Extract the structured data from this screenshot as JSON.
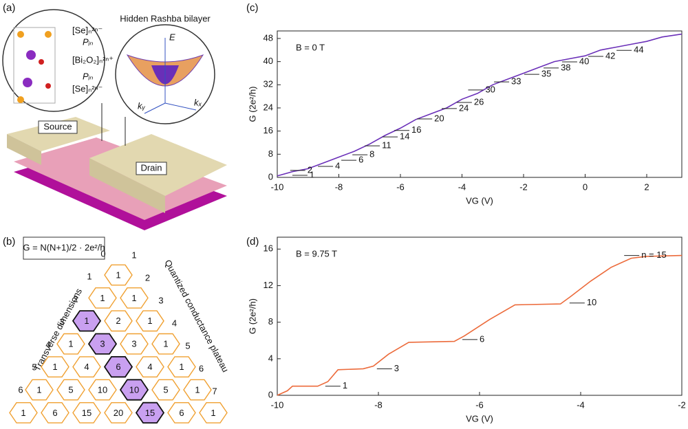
{
  "panels": {
    "a": {
      "label": "(a)",
      "zoom_title": "Hidden Rashba bilayer",
      "source": "Source",
      "drain": "Drain",
      "layers": [
        "[Se]ₙ²ⁿ⁻",
        "[Bi₂O₂]ₙ²ⁿ⁺",
        "[Se]ₙ²ⁿ⁻"
      ],
      "dipoles": [
        "Pᵢₙ",
        "Pᵢₙ"
      ],
      "axes": [
        "E",
        "kₓ",
        "kᵧ"
      ]
    },
    "b": {
      "label": "(b)",
      "formula": "G = N(N+1)/2 · 2e²/h",
      "left_text": "Transverse dimensions",
      "right_text": "Quantized conductance plateau",
      "rows": [
        [
          1
        ],
        [
          1,
          1
        ],
        [
          1,
          2,
          1
        ],
        [
          1,
          3,
          3,
          1
        ],
        [
          1,
          4,
          6,
          4,
          1
        ],
        [
          1,
          5,
          10,
          10,
          5,
          1
        ],
        [
          1,
          6,
          15,
          20,
          15,
          6,
          1
        ]
      ],
      "highlighted": [
        [
          2,
          0
        ],
        [
          3,
          1
        ],
        [
          4,
          2
        ],
        [
          5,
          3
        ],
        [
          6,
          4
        ]
      ],
      "left_labels": [
        "0",
        "1",
        "2",
        "3",
        "4",
        "5",
        "6"
      ],
      "right_labels": [
        "1",
        "2",
        "3",
        "4",
        "5",
        "6",
        "7"
      ]
    }
  },
  "chart_data": [
    {
      "type": "line",
      "panel_label": "(c)",
      "note": "B = 0 T",
      "xlabel": "VG (V)",
      "ylabel": "G (2e²/h)",
      "color": "#6a2fb8",
      "x": [
        -10,
        -9.5,
        -9,
        -8.5,
        -8,
        -7.5,
        -7,
        -6.5,
        -6,
        -5.5,
        -5,
        -4.5,
        -4,
        -3.5,
        -3,
        -2.5,
        -2,
        -1.5,
        -1,
        -0.5,
        0,
        0.5,
        1,
        1.5,
        2,
        2.5,
        3.14
      ],
      "values": [
        0.5,
        2,
        3,
        5,
        7,
        9,
        11.5,
        14.5,
        17,
        20,
        22,
        24,
        27,
        29,
        32,
        34,
        36,
        38,
        40,
        41,
        42,
        44,
        45,
        46,
        47,
        48.5,
        49.5
      ],
      "xlim": [
        -10,
        3.14
      ],
      "ylim": [
        0,
        50.6
      ],
      "xticks": [
        -10,
        -8,
        -6,
        -4,
        -2,
        0,
        2
      ],
      "yticks": [
        0,
        8,
        16,
        24,
        32,
        40,
        48
      ],
      "annotations": [
        {
          "text": "1",
          "x": -9.51,
          "y": 0.7
        },
        {
          "text": "2",
          "x": -9.58,
          "y": 2.4
        },
        {
          "text": "4",
          "x": -8.68,
          "y": 3.8
        },
        {
          "text": "6",
          "x": -7.92,
          "y": 5.9
        },
        {
          "text": "8",
          "x": -7.56,
          "y": 7.8
        },
        {
          "text": "11",
          "x": -7.16,
          "y": 10.9
        },
        {
          "text": "14",
          "x": -6.58,
          "y": 14
        },
        {
          "text": "16",
          "x": -6.2,
          "y": 16.2
        },
        {
          "text": "20",
          "x": -5.46,
          "y": 20.2
        },
        {
          "text": "24",
          "x": -4.66,
          "y": 23.8
        },
        {
          "text": "26",
          "x": -4.17,
          "y": 25.9
        },
        {
          "text": "30",
          "x": -3.8,
          "y": 30.2
        },
        {
          "text": "33",
          "x": -2.96,
          "y": 33
        },
        {
          "text": "35",
          "x": -1.98,
          "y": 35.6
        },
        {
          "text": "38",
          "x": -1.35,
          "y": 37.8
        },
        {
          "text": "40",
          "x": -0.75,
          "y": 39.9
        },
        {
          "text": "42",
          "x": 0.1,
          "y": 41.8
        },
        {
          "text": "44",
          "x": 1.02,
          "y": 43.9
        }
      ]
    },
    {
      "type": "line",
      "panel_label": "(d)",
      "note": "B = 9.75 T",
      "xlabel": "VG (V)",
      "ylabel": "G (2e²/h)",
      "color": "#ec6a3a",
      "x": [
        -10,
        -9.8,
        -9.7,
        -9.2,
        -9,
        -8.8,
        -8.3,
        -8.1,
        -7.8,
        -7.4,
        -6.5,
        -6.3,
        -5.8,
        -5.3,
        -4.4,
        -4.2,
        -3.8,
        -3.4,
        -3,
        -2.7,
        -2
      ],
      "values": [
        0,
        0.5,
        1,
        1,
        1.5,
        2.8,
        2.9,
        3.2,
        4.5,
        5.8,
        5.9,
        6.5,
        8.3,
        9.9,
        10,
        10.8,
        12.5,
        14,
        15,
        15.2,
        15.3
      ],
      "xlim": [
        -10,
        -2
      ],
      "ylim": [
        0,
        17.3
      ],
      "xticks": [
        -10,
        -8,
        -6,
        -4,
        -2
      ],
      "yticks": [
        0,
        4,
        8,
        12,
        16
      ],
      "annotations": [
        {
          "text": "1",
          "x": -9.05,
          "y": 1
        },
        {
          "text": "3",
          "x": -8.03,
          "y": 2.9
        },
        {
          "text": "6",
          "x": -6.34,
          "y": 6.1
        },
        {
          "text": "10",
          "x": -4.22,
          "y": 10.1
        },
        {
          "text": "n = 15",
          "x": -3.14,
          "y": 15.3
        }
      ]
    }
  ]
}
